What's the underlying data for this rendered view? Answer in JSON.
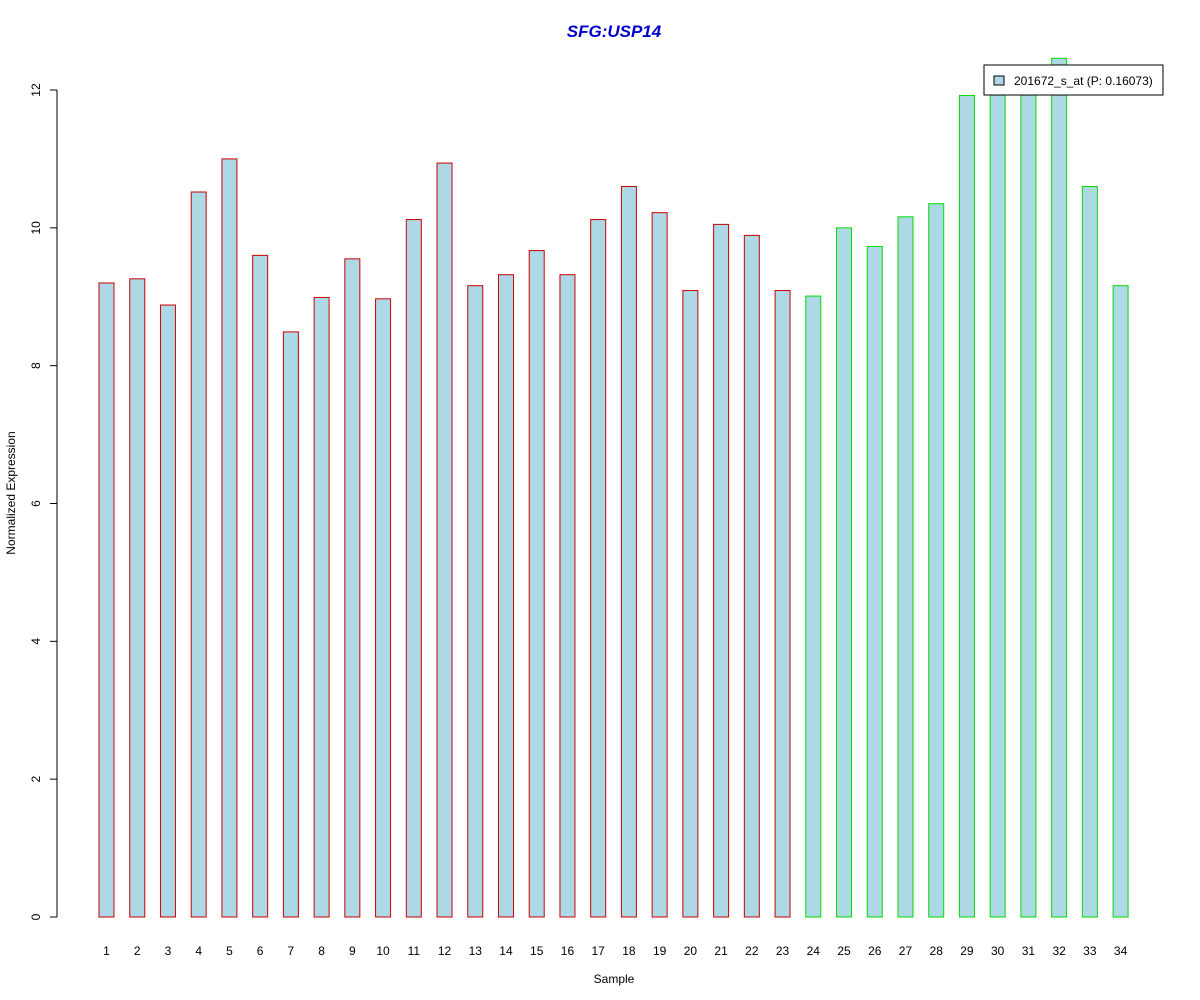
{
  "chart_data": {
    "type": "bar",
    "title": "SFG:USP14",
    "xlabel": "Sample",
    "ylabel": "Normalized Expression",
    "ylim": [
      0,
      12
    ],
    "yticks": [
      0,
      2,
      4,
      6,
      8,
      10,
      12
    ],
    "grid": false,
    "legend_position": "top-right",
    "colors": {
      "title": "#0000cc",
      "bar_fill": "#add8e6",
      "group_1_border": "#cc0000",
      "group_2_border": "#00dd00"
    },
    "categories": [
      "1",
      "2",
      "3",
      "4",
      "5",
      "6",
      "7",
      "8",
      "9",
      "10",
      "11",
      "12",
      "13",
      "14",
      "15",
      "16",
      "17",
      "18",
      "19",
      "20",
      "21",
      "22",
      "23",
      "24",
      "25",
      "26",
      "27",
      "28",
      "29",
      "30",
      "31",
      "32",
      "33",
      "34"
    ],
    "series": [
      {
        "name": "201672_s_at (P: 0.16073)",
        "values": [
          9.2,
          9.26,
          8.88,
          10.52,
          11.0,
          9.6,
          8.49,
          8.99,
          9.55,
          8.97,
          10.12,
          10.94,
          9.16,
          9.32,
          9.67,
          9.32,
          10.12,
          10.6,
          10.22,
          9.09,
          10.05,
          9.89,
          9.09,
          9.01,
          10.0,
          9.73,
          10.16,
          10.35,
          11.92,
          12.02,
          12.01,
          12.46,
          10.6,
          9.16
        ],
        "groups": [
          1,
          1,
          1,
          1,
          1,
          1,
          1,
          1,
          1,
          1,
          1,
          1,
          1,
          1,
          1,
          1,
          1,
          1,
          1,
          1,
          1,
          1,
          1,
          2,
          2,
          2,
          2,
          2,
          2,
          2,
          2,
          2,
          2,
          2
        ]
      }
    ]
  }
}
